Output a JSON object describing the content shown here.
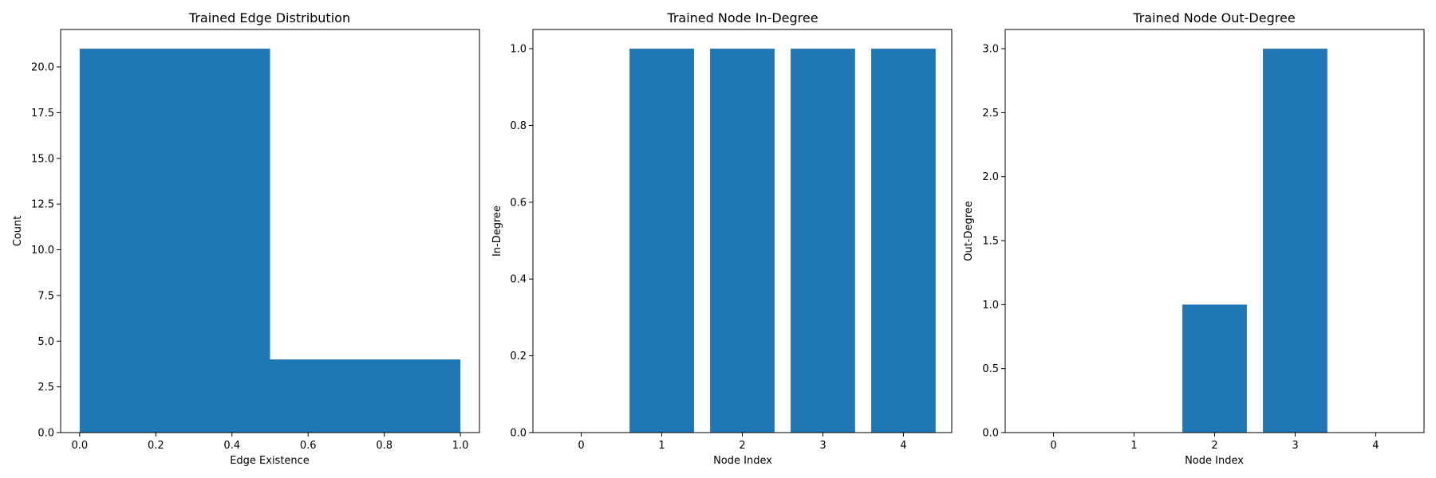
{
  "colors": {
    "bar": "#1f77b4",
    "axis": "#000000",
    "background": "#ffffff"
  },
  "chart_data": [
    {
      "type": "bar",
      "subtype": "histogram",
      "title": "Trained Edge Distribution",
      "xlabel": "Edge Existence",
      "ylabel": "Count",
      "bins": [
        {
          "start": 0.0,
          "end": 0.5,
          "count": 21
        },
        {
          "start": 0.5,
          "end": 1.0,
          "count": 4
        }
      ],
      "xlim": [
        -0.05,
        1.05
      ],
      "ylim": [
        0,
        22.05
      ],
      "xticks": [
        0.0,
        0.2,
        0.4,
        0.6,
        0.8,
        1.0
      ],
      "xtick_labels": [
        "0.0",
        "0.2",
        "0.4",
        "0.6",
        "0.8",
        "1.0"
      ],
      "yticks": [
        0,
        2.5,
        5,
        7.5,
        10,
        12.5,
        15,
        17.5,
        20
      ],
      "ytick_labels": [
        "0.0",
        "2.5",
        "5.0",
        "7.5",
        "10.0",
        "12.5",
        "15.0",
        "17.5",
        "20.0"
      ],
      "grid": false
    },
    {
      "type": "bar",
      "title": "Trained Node In-Degree",
      "xlabel": "Node Index",
      "ylabel": "In-Degree",
      "categories": [
        "0",
        "1",
        "2",
        "3",
        "4"
      ],
      "values": [
        0,
        1,
        1,
        1,
        1
      ],
      "xlim": [
        -0.6,
        4.6
      ],
      "ylim": [
        0,
        1.05
      ],
      "yticks": [
        0,
        0.2,
        0.4,
        0.6,
        0.8,
        1.0
      ],
      "ytick_labels": [
        "0.0",
        "0.2",
        "0.4",
        "0.6",
        "0.8",
        "1.0"
      ],
      "grid": false
    },
    {
      "type": "bar",
      "title": "Trained Node Out-Degree",
      "xlabel": "Node Index",
      "ylabel": "Out-Degree",
      "categories": [
        "0",
        "1",
        "2",
        "3",
        "4"
      ],
      "values": [
        0,
        0,
        1,
        3,
        0
      ],
      "xlim": [
        -0.6,
        4.6
      ],
      "ylim": [
        0,
        3.15
      ],
      "yticks": [
        0,
        0.5,
        1.0,
        1.5,
        2.0,
        2.5,
        3.0
      ],
      "ytick_labels": [
        "0.0",
        "0.5",
        "1.0",
        "1.5",
        "2.0",
        "2.5",
        "3.0"
      ],
      "grid": false
    }
  ]
}
